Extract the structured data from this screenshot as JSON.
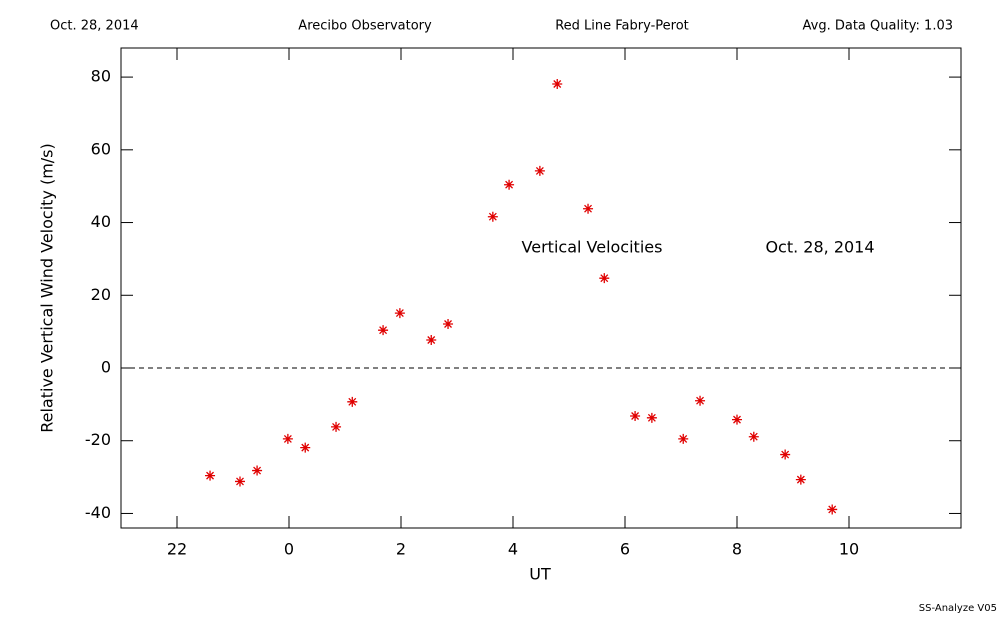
{
  "header": {
    "date": "Oct. 28, 2014",
    "site": "Arecibo Observatory",
    "instrument": "Red Line Fabry-Perot",
    "quality": "Avg. Data Quality: 1.03"
  },
  "footer": "SS-Analyze V05",
  "chart_data": {
    "type": "scatter",
    "xlabel": "UT",
    "ylabel": "Relative Vertical Wind Velocity (m/s)",
    "annotations": [
      "Vertical Velocities",
      "Oct. 28, 2014"
    ],
    "color": "#e00000",
    "hline": 0,
    "xlim": [
      -3,
      12
    ],
    "ylim": [
      -44,
      88
    ],
    "xticks": [
      {
        "value": -2,
        "label": "22"
      },
      0,
      2,
      4,
      6,
      8,
      10
    ],
    "yticks": [
      -40,
      -20,
      0,
      20,
      40,
      60,
      80
    ],
    "x": [
      -1.41,
      -0.875,
      -0.57,
      -0.02,
      0.29,
      0.84,
      1.13,
      1.68,
      1.98,
      2.54,
      2.84,
      3.64,
      3.93,
      4.48,
      4.79,
      5.34,
      5.63,
      6.18,
      6.48,
      7.04,
      7.34,
      8.0,
      8.3,
      8.86,
      9.14,
      9.7
    ],
    "values": [
      -29.6,
      -31.2,
      -28.2,
      -19.5,
      -21.9,
      -16.2,
      -9.3,
      10.4,
      15.1,
      7.7,
      12.1,
      41.6,
      50.4,
      54.2,
      78.1,
      43.8,
      24.7,
      -13.2,
      -13.7,
      -19.5,
      -9.0,
      -14.2,
      -18.9,
      -23.8,
      -30.7,
      -38.9
    ]
  }
}
